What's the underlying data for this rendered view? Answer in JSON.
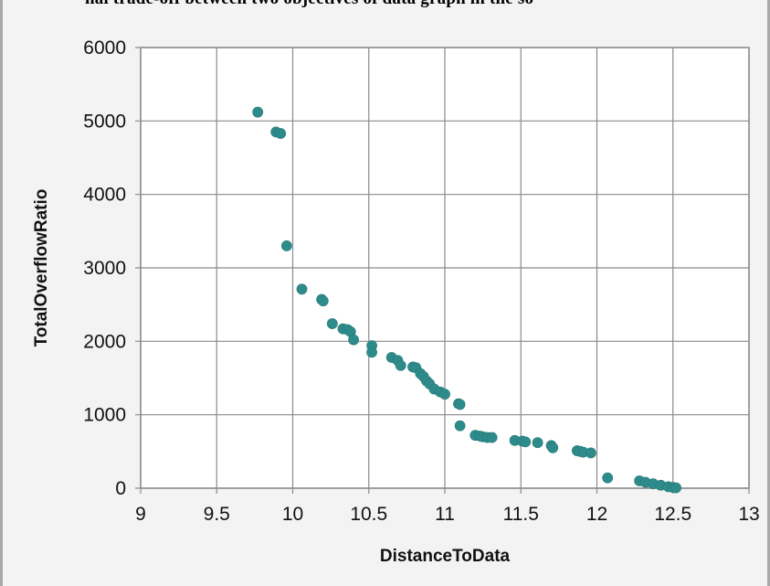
{
  "caption_fragment": "nal trade-off between two objectives of data graph in the so",
  "chart_data": {
    "type": "scatter",
    "title": "",
    "xlabel": "DistanceToData",
    "ylabel": "TotalOverflowRatio",
    "xlim": [
      9,
      13
    ],
    "ylim": [
      0,
      6000
    ],
    "x_ticks": [
      "9",
      "9.5",
      "10",
      "10.5",
      "11",
      "11.5",
      "12",
      "12.5",
      "13"
    ],
    "y_ticks": [
      "0",
      "1000",
      "2000",
      "3000",
      "4000",
      "5000",
      "6000"
    ],
    "grid": true,
    "legend": "none",
    "marker_color": "#2e8b8b",
    "points": [
      [
        9.77,
        5120
      ],
      [
        9.89,
        4850
      ],
      [
        9.92,
        4830
      ],
      [
        9.96,
        3300
      ],
      [
        10.06,
        2710
      ],
      [
        10.19,
        2570
      ],
      [
        10.2,
        2550
      ],
      [
        10.26,
        2240
      ],
      [
        10.33,
        2170
      ],
      [
        10.36,
        2160
      ],
      [
        10.38,
        2130
      ],
      [
        10.4,
        2020
      ],
      [
        10.52,
        1940
      ],
      [
        10.52,
        1850
      ],
      [
        10.65,
        1780
      ],
      [
        10.69,
        1740
      ],
      [
        10.71,
        1670
      ],
      [
        10.79,
        1650
      ],
      [
        10.81,
        1640
      ],
      [
        10.84,
        1560
      ],
      [
        10.86,
        1520
      ],
      [
        10.88,
        1460
      ],
      [
        10.9,
        1420
      ],
      [
        10.93,
        1350
      ],
      [
        10.97,
        1310
      ],
      [
        11.0,
        1280
      ],
      [
        11.09,
        1150
      ],
      [
        11.1,
        1140
      ],
      [
        11.1,
        850
      ],
      [
        11.2,
        720
      ],
      [
        11.23,
        710
      ],
      [
        11.25,
        700
      ],
      [
        11.28,
        690
      ],
      [
        11.31,
        690
      ],
      [
        11.46,
        650
      ],
      [
        11.51,
        640
      ],
      [
        11.53,
        630
      ],
      [
        11.61,
        620
      ],
      [
        11.7,
        580
      ],
      [
        11.71,
        550
      ],
      [
        11.87,
        510
      ],
      [
        11.89,
        500
      ],
      [
        11.91,
        490
      ],
      [
        11.96,
        480
      ],
      [
        12.07,
        140
      ],
      [
        12.28,
        100
      ],
      [
        12.32,
        80
      ],
      [
        12.37,
        60
      ],
      [
        12.42,
        40
      ],
      [
        12.47,
        20
      ],
      [
        12.5,
        10
      ],
      [
        12.52,
        5
      ]
    ]
  }
}
